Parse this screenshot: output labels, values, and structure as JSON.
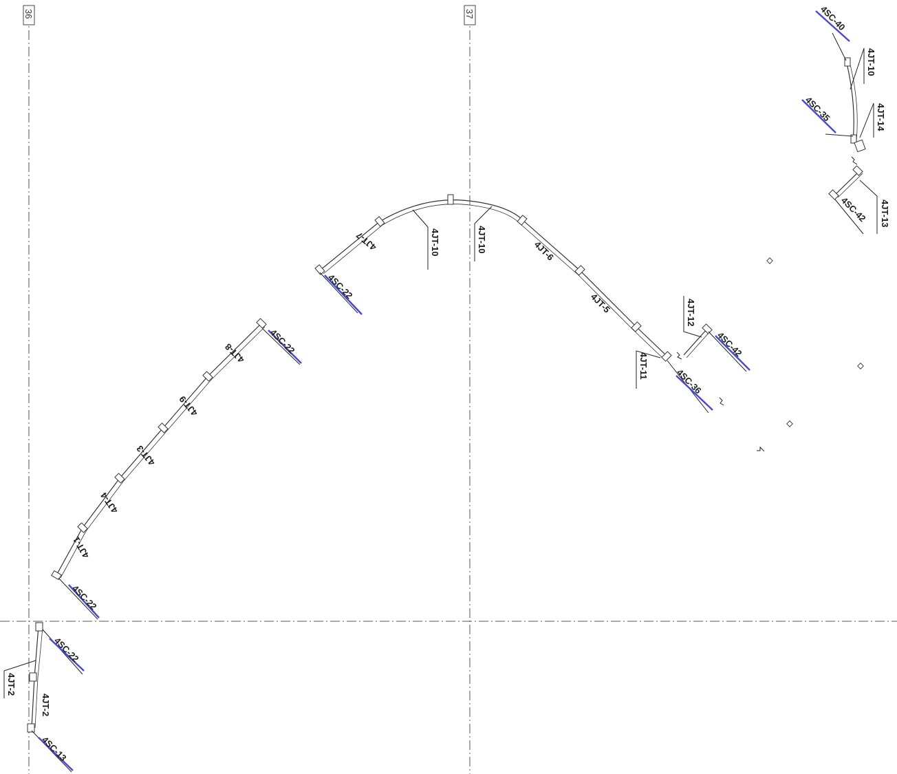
{
  "grid": {
    "tag_36": "36",
    "tag_37": "37"
  },
  "labels": {
    "jt10_top": "4JT-10",
    "jt14": "4JT-14",
    "jt13": "4JT-13",
    "jt10_arcL": "4JT-10",
    "jt10_arcR": "4JT-10",
    "jt7": "4JT-7",
    "jt6": "4JT-6",
    "jt5": "4JT-5",
    "jt11": "4JT-11",
    "jt12": "4JT-12",
    "jt8": "4JT-8",
    "jt9": "4JT-9",
    "jt3": "4JT-3",
    "jt4": "4JT-4",
    "jt1": "4JT-1",
    "jt2_left": "4JT-2",
    "jt2": "4JT-2"
  },
  "sc_labels": {
    "sc40": "4SC-40",
    "sc35": "4SC-35",
    "sc42_top": "4SC-42",
    "sc22_arc": "4SC-22",
    "sc42_mid": "4SC-42",
    "sc36": "4SC-36",
    "sc22_upper": "4SC-22",
    "sc22_lower": "4SC-22",
    "sc22_bottom": "4SC-22",
    "sc13": "4SC-13"
  }
}
